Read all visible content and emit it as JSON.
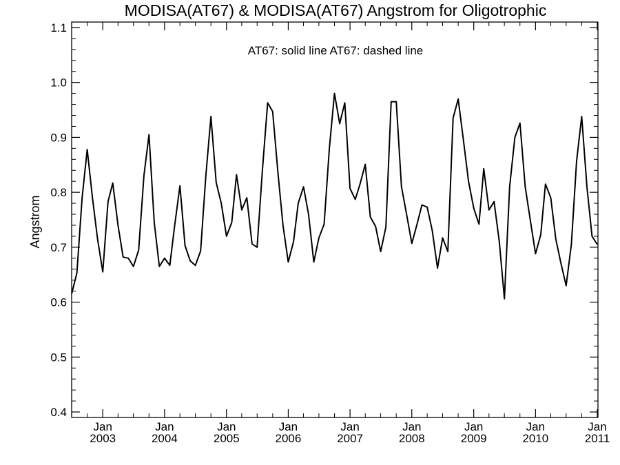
{
  "chart_data": {
    "type": "line",
    "title": "MODISA(AT67) & MODISA(AT67)  Angstrom for Oligotrophic",
    "annotation": "AT67: solid line   AT67: dashed line",
    "ylabel": "Angstrom",
    "xlabel": "",
    "ylim": [
      0.39,
      1.11
    ],
    "yticks": [
      {
        "value": 0.4,
        "label": "0.4"
      },
      {
        "value": 0.5,
        "label": "0.5"
      },
      {
        "value": 0.6,
        "label": "0.6"
      },
      {
        "value": 0.7,
        "label": "0.7"
      },
      {
        "value": 0.8,
        "label": "0.8"
      },
      {
        "value": 0.9,
        "label": "0.9"
      },
      {
        "value": 1.0,
        "label": "1.0"
      },
      {
        "value": 1.1,
        "label": "1.1"
      }
    ],
    "xlim": [
      "2002-07-01",
      "2011-01-05"
    ],
    "xticks": [
      {
        "date": "2003-01-01",
        "month": "Jan",
        "year": "2003"
      },
      {
        "date": "2004-01-01",
        "month": "Jan",
        "year": "2004"
      },
      {
        "date": "2005-01-01",
        "month": "Jan",
        "year": "2005"
      },
      {
        "date": "2006-01-01",
        "month": "Jan",
        "year": "2006"
      },
      {
        "date": "2007-01-01",
        "month": "Jan",
        "year": "2007"
      },
      {
        "date": "2008-01-01",
        "month": "Jan",
        "year": "2008"
      },
      {
        "date": "2009-01-01",
        "month": "Jan",
        "year": "2009"
      },
      {
        "date": "2010-01-01",
        "month": "Jan",
        "year": "2010"
      },
      {
        "date": "2011-01-01",
        "month": "Jan",
        "year": "2011"
      }
    ],
    "grid": false,
    "series": [
      {
        "style": "solid",
        "x": [
          "2002-07",
          "2002-08",
          "2002-09",
          "2002-10",
          "2002-11",
          "2002-12",
          "2003-01",
          "2003-02",
          "2003-03",
          "2003-04",
          "2003-05",
          "2003-06",
          "2003-07",
          "2003-08",
          "2003-09",
          "2003-10",
          "2003-11",
          "2003-12",
          "2004-01",
          "2004-02",
          "2004-03",
          "2004-04",
          "2004-05",
          "2004-06",
          "2004-07",
          "2004-08",
          "2004-09",
          "2004-10",
          "2004-11",
          "2004-12",
          "2005-01",
          "2005-02",
          "2005-03",
          "2005-04",
          "2005-05",
          "2005-06",
          "2005-07",
          "2005-08",
          "2005-09",
          "2005-10",
          "2005-11",
          "2005-12",
          "2006-01",
          "2006-02",
          "2006-03",
          "2006-04",
          "2006-05",
          "2006-06",
          "2006-07",
          "2006-08",
          "2006-09",
          "2006-10",
          "2006-11",
          "2006-12",
          "2007-01",
          "2007-02",
          "2007-03",
          "2007-04",
          "2007-05",
          "2007-06",
          "2007-07",
          "2007-08",
          "2007-09",
          "2007-10",
          "2007-11",
          "2007-12",
          "2008-01",
          "2008-02",
          "2008-03",
          "2008-04",
          "2008-05",
          "2008-06",
          "2008-07",
          "2008-08",
          "2008-09",
          "2008-10",
          "2008-11",
          "2008-12",
          "2009-01",
          "2009-02",
          "2009-03",
          "2009-04",
          "2009-05",
          "2009-06",
          "2009-07",
          "2009-08",
          "2009-09",
          "2009-10",
          "2009-11",
          "2009-12",
          "2010-01",
          "2010-02",
          "2010-03",
          "2010-04",
          "2010-05",
          "2010-06",
          "2010-07",
          "2010-08",
          "2010-09",
          "2010-10",
          "2010-11",
          "2010-12",
          "2011-01"
        ],
        "y": [
          0.615,
          0.653,
          0.79,
          0.878,
          0.79,
          0.715,
          0.655,
          0.783,
          0.817,
          0.74,
          0.682,
          0.68,
          0.665,
          0.695,
          0.83,
          0.905,
          0.745,
          0.665,
          0.68,
          0.667,
          0.74,
          0.812,
          0.703,
          0.675,
          0.667,
          0.693,
          0.83,
          0.938,
          0.818,
          0.78,
          0.72,
          0.745,
          0.832,
          0.768,
          0.79,
          0.706,
          0.7,
          0.84,
          0.963,
          0.947,
          0.835,
          0.74,
          0.673,
          0.71,
          0.78,
          0.81,
          0.76,
          0.673,
          0.717,
          0.742,
          0.88,
          0.98,
          0.925,
          0.963,
          0.807,
          0.787,
          0.815,
          0.851,
          0.755,
          0.738,
          0.692,
          0.737,
          0.965,
          0.965,
          0.81,
          0.76,
          0.707,
          0.742,
          0.777,
          0.773,
          0.73,
          0.662,
          0.717,
          0.692,
          0.935,
          0.97,
          0.895,
          0.82,
          0.771,
          0.742,
          0.843,
          0.768,
          0.783,
          0.71,
          0.606,
          0.81,
          0.9,
          0.926,
          0.81,
          0.75,
          0.688,
          0.723,
          0.815,
          0.79,
          0.715,
          0.67,
          0.63,
          0.705,
          0.857,
          0.938,
          0.81,
          0.72,
          0.705
        ]
      }
    ]
  }
}
